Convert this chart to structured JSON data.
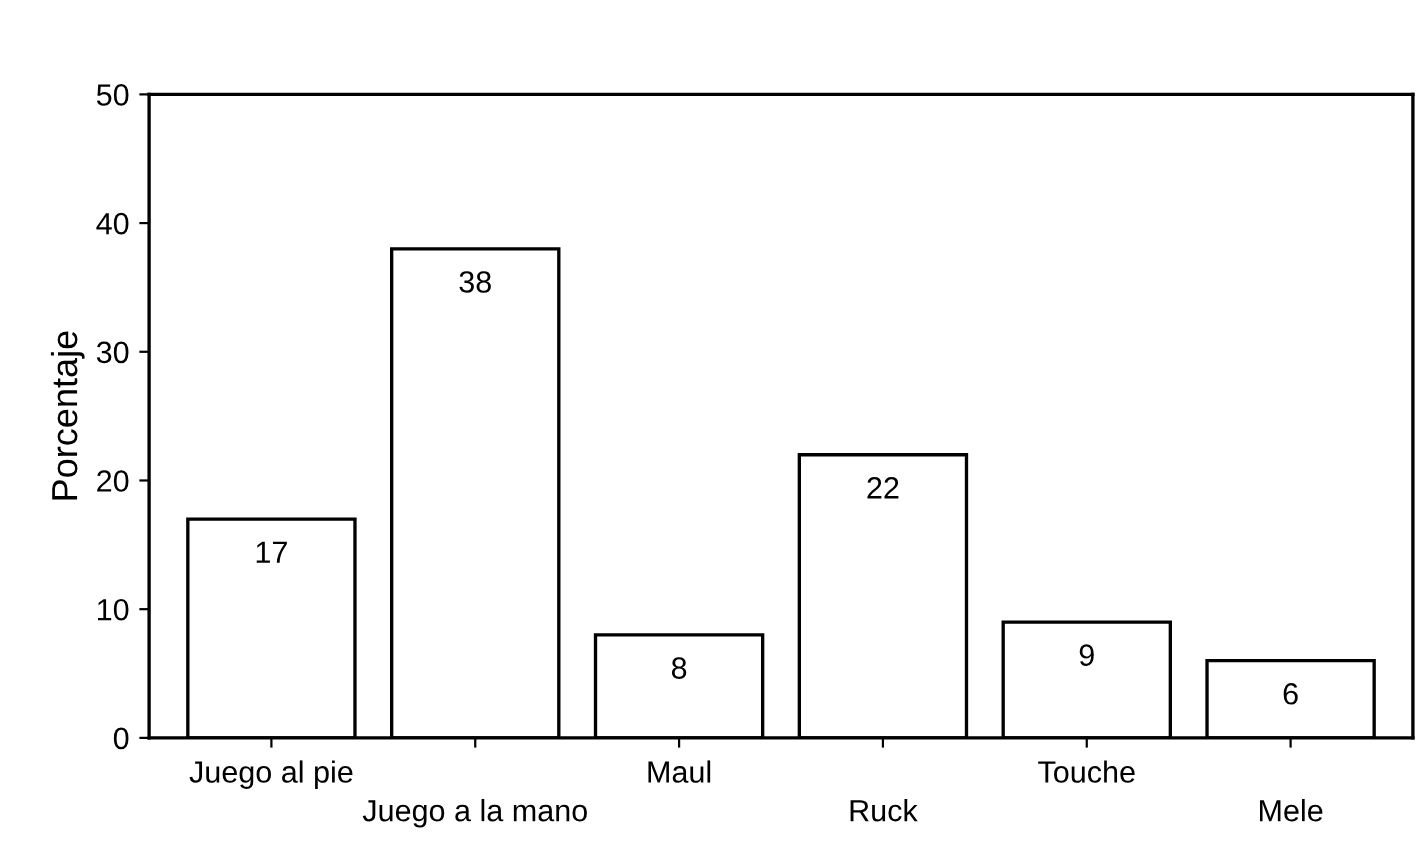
{
  "chart_data": {
    "type": "bar",
    "ylabel": "Porcentaje",
    "categories": [
      "Juego al pie",
      "Juego a la mano",
      "Maul",
      "Ruck",
      "Touche",
      "Mele"
    ],
    "values": [
      17,
      38,
      8,
      22,
      9,
      6
    ],
    "color": "#ffffff",
    "ylim": [
      0,
      50
    ],
    "yticks": [
      0,
      10,
      20,
      30,
      40,
      50
    ],
    "grid": false,
    "data_labels": true
  }
}
